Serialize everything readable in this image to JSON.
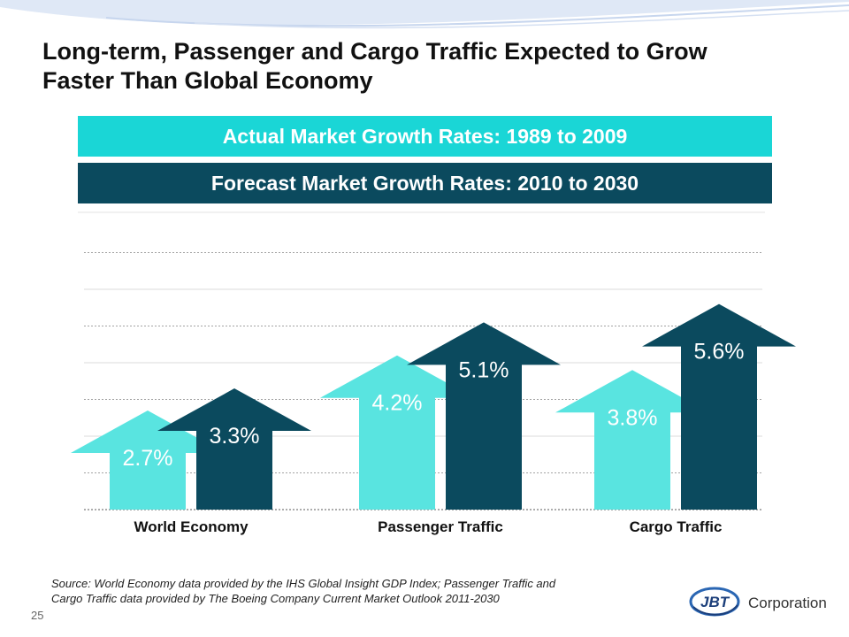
{
  "slide": {
    "title_line1": "Long-term, Passenger and Cargo Traffic Expected to Grow",
    "title_line2": "Faster Than Global Economy",
    "legend_actual": "Actual Market Growth Rates:  1989 to 2009",
    "legend_forecast": "Forecast Market Growth Rates: 2010 to 2030",
    "source_line1": "Source: World Economy data provided by the IHS Global Insight  GDP Index; Passenger Traffic and",
    "source_line2": "Cargo Traffic data provided by The Boeing Company Current Market Outlook 2011-2030",
    "page_number": "25",
    "logo_text": "Corporation",
    "logo_mark": "JBT"
  },
  "colors": {
    "actual": "#59e4e0",
    "forecast": "#0b4a5e",
    "grid": "#9a9a9a"
  },
  "chart_data": {
    "type": "bar",
    "categories": [
      "World Economy",
      "Passenger Traffic",
      "Cargo Traffic"
    ],
    "series": [
      {
        "name": "Actual Market Growth Rates:  1989 to 2009",
        "values": [
          2.7,
          4.2,
          3.8
        ],
        "labels": [
          "2.7%",
          "4.2%",
          "3.8%"
        ]
      },
      {
        "name": "Forecast Market Growth Rates: 2010 to 2030",
        "values": [
          3.3,
          5.1,
          5.6
        ],
        "labels": [
          "3.3%",
          "5.1%",
          "5.6%"
        ]
      }
    ],
    "ylim": [
      0,
      7
    ],
    "grid": true,
    "legend_placement": "top"
  }
}
